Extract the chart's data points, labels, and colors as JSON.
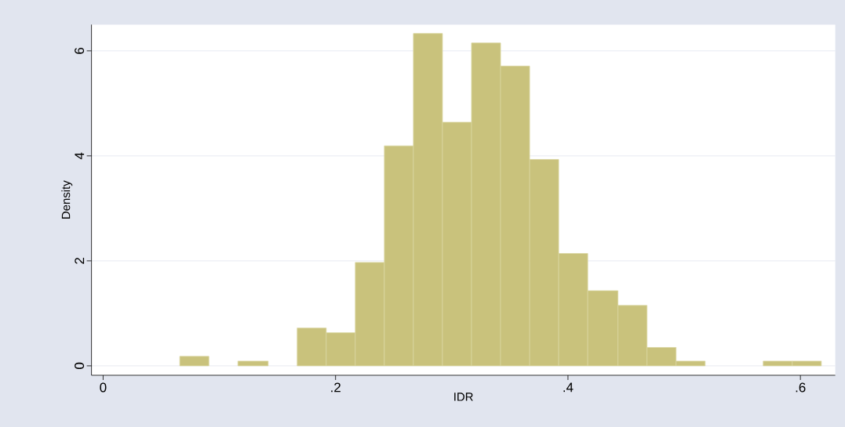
{
  "chart_data": {
    "type": "histogram",
    "xlabel": "IDR",
    "ylabel": "Density",
    "bins": [
      0.066,
      0.091,
      0.116,
      0.142,
      0.167,
      0.192,
      0.217,
      0.242,
      0.267,
      0.292,
      0.317,
      0.342,
      0.367,
      0.392,
      0.417,
      0.443,
      0.468,
      0.493,
      0.518,
      0.568,
      0.593,
      0.618
    ],
    "values": [
      0.18,
      0,
      0.09,
      0,
      0.72,
      0.63,
      1.97,
      4.19,
      6.33,
      4.64,
      6.15,
      5.71,
      3.93,
      2.14,
      1.43,
      1.15,
      0.35,
      0.09,
      0,
      0.09,
      0.09
    ],
    "color": "#c9c27c",
    "xlim": [
      -0.01,
      0.63
    ],
    "ylim": [
      -0.18,
      6.5
    ],
    "xticks": [
      0,
      {
        "value": 0.2,
        "label": ".2"
      },
      {
        "value": 0.4,
        "label": ".4"
      },
      {
        "value": 0.6,
        "label": ".6"
      }
    ],
    "yticks": [
      0,
      2,
      4,
      6
    ],
    "grid": "y"
  }
}
